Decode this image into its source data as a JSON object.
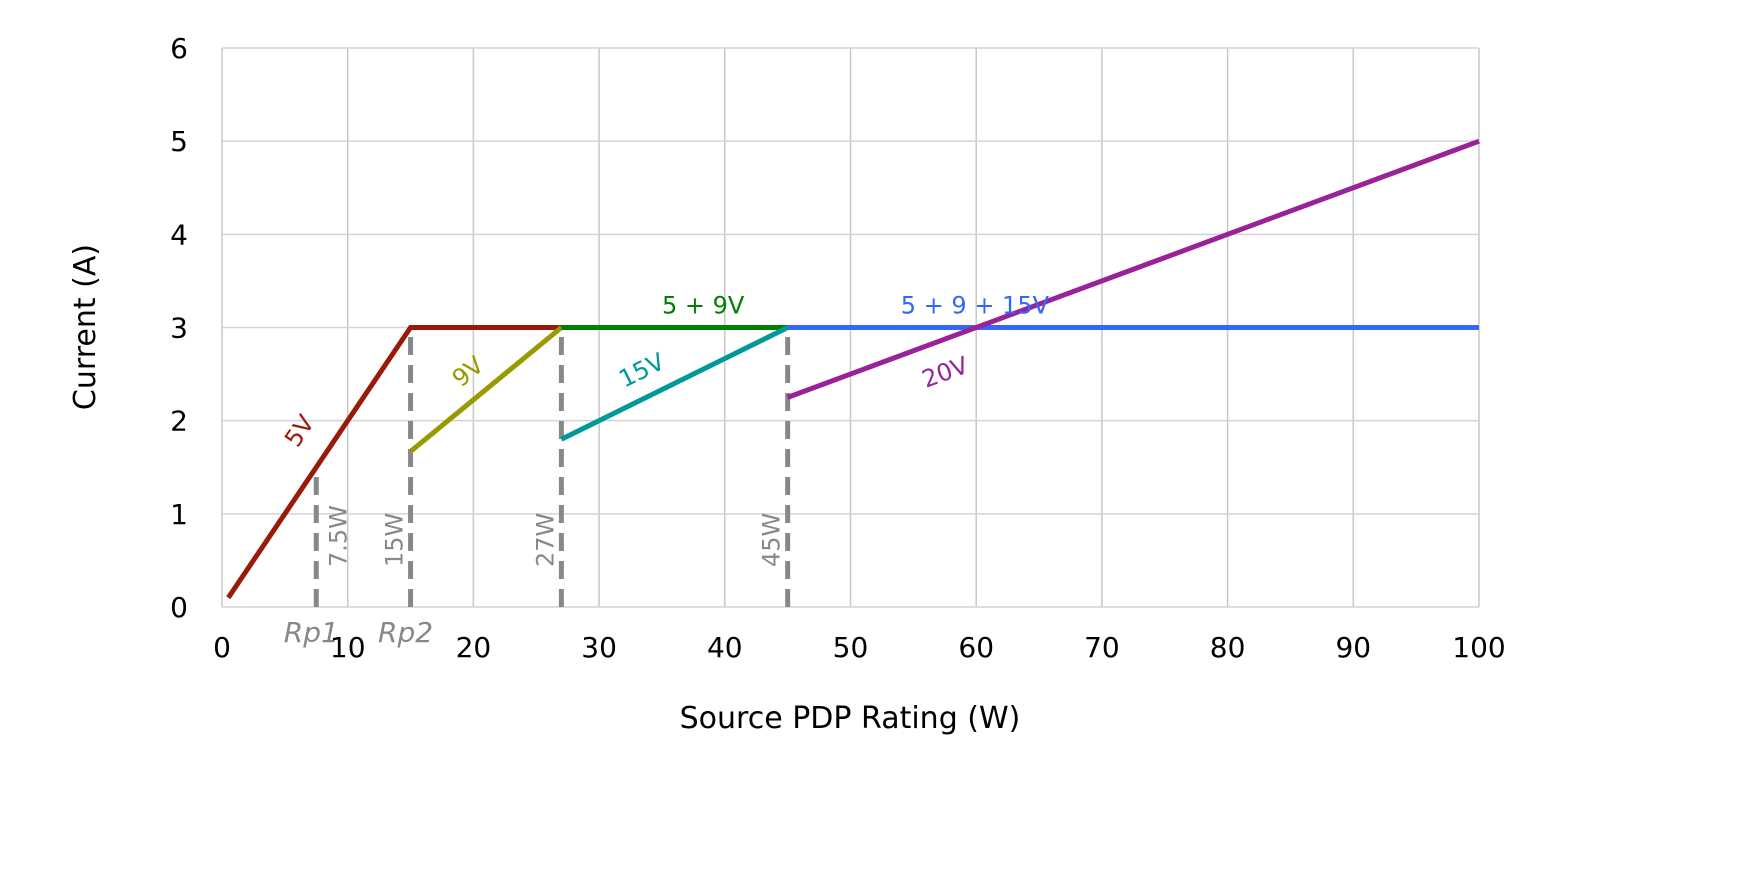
{
  "chart_data": {
    "type": "line",
    "title": "",
    "xlabel": "Source PDP Rating (W)",
    "ylabel": "Current (A)",
    "xlim": [
      0,
      100
    ],
    "ylim": [
      0,
      6
    ],
    "xticks": [
      "0",
      "10",
      "20",
      "30",
      "40",
      "50",
      "60",
      "70",
      "80",
      "90",
      "100"
    ],
    "yticks": [
      "0",
      "1",
      "2",
      "3",
      "4",
      "5",
      "6"
    ],
    "grid": true,
    "legend": "none",
    "series": [
      {
        "name": "5V",
        "color": "#9A1A0A",
        "points": [
          [
            0.5,
            0.1
          ],
          [
            15,
            3
          ],
          [
            27,
            3
          ]
        ],
        "label_at": [
          6,
          1.7
        ]
      },
      {
        "name": "9V",
        "color": "#999900",
        "points": [
          [
            15,
            1.67
          ],
          [
            27,
            3
          ]
        ],
        "label_at": [
          19,
          2.35
        ]
      },
      {
        "name": "5 + 9V",
        "color": "#008000",
        "points": [
          [
            27,
            3
          ],
          [
            45,
            3
          ]
        ],
        "label_at": [
          35,
          3.15
        ]
      },
      {
        "name": "15V",
        "color": "#009999",
        "points": [
          [
            27,
            1.8
          ],
          [
            45,
            3
          ]
        ],
        "label_at": [
          32,
          2.35
        ]
      },
      {
        "name": "5 + 9 + 15V",
        "color": "#3366FF",
        "points": [
          [
            45,
            3
          ],
          [
            100,
            3
          ]
        ],
        "label_at": [
          54,
          3.15
        ]
      },
      {
        "name": "20V",
        "color": "#992299",
        "points": [
          [
            45,
            2.25
          ],
          [
            100,
            5
          ]
        ],
        "label_at": [
          56,
          2.35
        ]
      }
    ],
    "markers": [
      {
        "x": 7.5,
        "top": 1.5,
        "label": "7.5W",
        "sublabel": "Rp1"
      },
      {
        "x": 15,
        "top": 3,
        "label": "15W",
        "sublabel": "Rp2"
      },
      {
        "x": 27,
        "top": 3,
        "label": "27W",
        "sublabel": ""
      },
      {
        "x": 45,
        "top": 3,
        "label": "45W",
        "sublabel": ""
      }
    ],
    "marker_color": "#888888"
  }
}
